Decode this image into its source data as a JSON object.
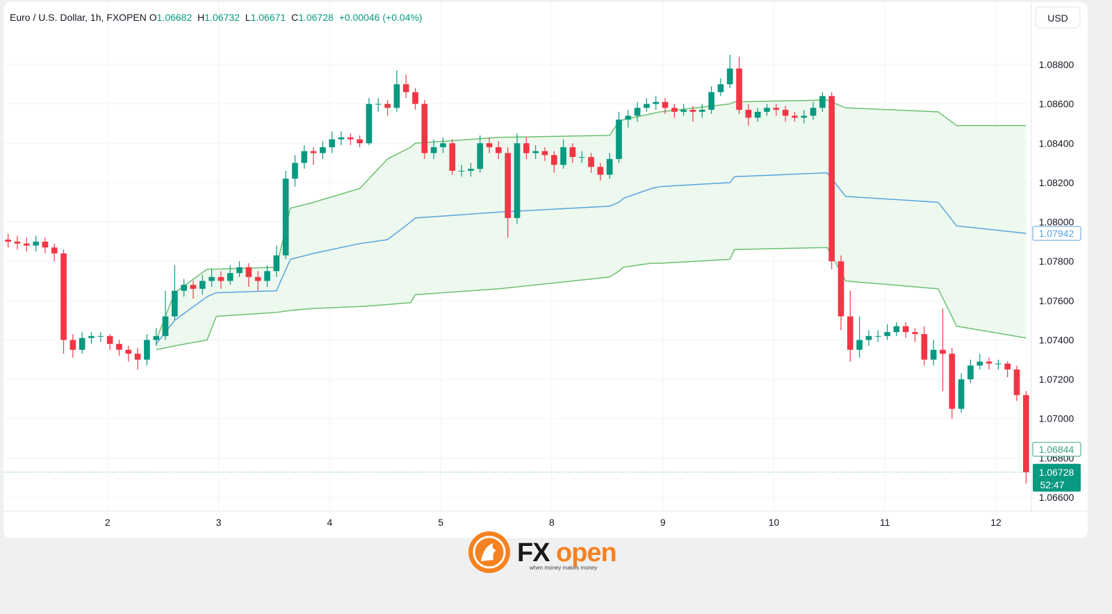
{
  "chart_data": {
    "type": "candlestick",
    "title": "Euro / U.S. Dollar, 1h, FXOPEN",
    "ohlc_header": [
      {
        "key": "O",
        "value": 1.06682
      },
      {
        "key": "H",
        "value": 1.06732
      },
      {
        "key": "L",
        "value": 1.06671
      },
      {
        "key": "C",
        "value": 1.06728
      }
    ],
    "change": "+0.00046 (+0.04%)",
    "currency": "USD",
    "up_color": "#089981",
    "down_color": "#f23645",
    "xlim": [
      0,
      222
    ],
    "xticks": [
      {
        "value": 22.5,
        "label": "2"
      },
      {
        "value": 46.5,
        "label": "3"
      },
      {
        "value": 70.5,
        "label": "4"
      },
      {
        "value": 94.5,
        "label": "5"
      },
      {
        "value": 118.5,
        "label": "8"
      },
      {
        "value": 142.5,
        "label": "9"
      },
      {
        "value": 166.5,
        "label": "10"
      },
      {
        "value": 190.5,
        "label": "11"
      },
      {
        "value": 214.5,
        "label": "12"
      }
    ],
    "ylim": [
      1.06533,
      1.09093
    ],
    "yticks": [
      {
        "value": 1.066,
        "label": "1.06600"
      },
      {
        "value": 1.068,
        "label": "1.06800"
      },
      {
        "value": 1.07,
        "label": "1.07000"
      },
      {
        "value": 1.072,
        "label": "1.07200"
      },
      {
        "value": 1.074,
        "label": "1.07400"
      },
      {
        "value": 1.076,
        "label": "1.07600"
      },
      {
        "value": 1.078,
        "label": "1.07800"
      },
      {
        "value": 1.08,
        "label": "1.08000"
      },
      {
        "value": 1.082,
        "label": "1.08200"
      },
      {
        "value": 1.084,
        "label": "1.08400"
      },
      {
        "value": 1.086,
        "label": "1.08600"
      },
      {
        "value": 1.088,
        "label": "1.08800"
      }
    ],
    "grid": true,
    "x": [
      1,
      3,
      5,
      7,
      9,
      11,
      13,
      15,
      17,
      19,
      21,
      23,
      25,
      27,
      29,
      31,
      33,
      35,
      37,
      39,
      41,
      43,
      45,
      47,
      49,
      51,
      53,
      55,
      57,
      59,
      61,
      63,
      65,
      67,
      69,
      71,
      73,
      75,
      77,
      79,
      81,
      83,
      85,
      87,
      89,
      91,
      93,
      95,
      97,
      99,
      101,
      103,
      105,
      107,
      109,
      111,
      113,
      115,
      117,
      119,
      121,
      123,
      125,
      127,
      129,
      131,
      133,
      135,
      137,
      139,
      141,
      143,
      145,
      147,
      149,
      151,
      153,
      155,
      157,
      159,
      161,
      163,
      165,
      167,
      169,
      171,
      173,
      175,
      177,
      179,
      181,
      183,
      185,
      187,
      189,
      191,
      193,
      195,
      197,
      199,
      201,
      203,
      205,
      207,
      209,
      211,
      213,
      215,
      217,
      219,
      221
    ],
    "open": [
      1.0791,
      1.079,
      1.0789,
      1.0788,
      1.079,
      1.0787,
      1.0784,
      1.074,
      1.0735,
      1.0741,
      1.0742,
      1.0742,
      1.0738,
      1.0735,
      1.0733,
      1.073,
      1.074,
      1.0742,
      1.0752,
      1.0765,
      1.0768,
      1.0766,
      1.077,
      1.0772,
      1.077,
      1.0774,
      1.0777,
      1.0772,
      1.077,
      1.0775,
      1.0783,
      1.0822,
      1.083,
      1.0836,
      1.0835,
      1.0838,
      1.0842,
      1.0843,
      1.0842,
      1.084,
      1.086,
      1.086,
      1.0858,
      1.087,
      1.0866,
      1.086,
      1.0835,
      1.0838,
      1.084,
      1.0826,
      1.0826,
      1.0827,
      1.084,
      1.0838,
      1.0835,
      1.0802,
      1.084,
      1.0835,
      1.0836,
      1.0834,
      1.0829,
      1.0838,
      1.0833,
      1.0833,
      1.0828,
      1.0824,
      1.0832,
      1.0852,
      1.0854,
      1.0858,
      1.086,
      1.0861,
      1.0858,
      1.0856,
      1.0857,
      1.0856,
      1.0857,
      1.0866,
      1.087,
      1.0878,
      1.0857,
      1.0853,
      1.0856,
      1.0858,
      1.0857,
      1.0854,
      1.0853,
      1.0854,
      1.0858,
      1.0864,
      1.078,
      1.0752,
      1.0735,
      1.074,
      1.0742,
      1.0742,
      1.0744,
      1.0747,
      1.0744,
      1.0743,
      1.073,
      1.0735,
      1.0733,
      1.0705,
      1.072,
      1.0727,
      1.0729,
      1.0728,
      1.0728,
      1.0725,
      1.0712
    ],
    "high": [
      1.0794,
      1.0793,
      1.0792,
      1.0793,
      1.0792,
      1.0789,
      1.0786,
      1.0743,
      1.0744,
      1.0744,
      1.0744,
      1.0743,
      1.074,
      1.0737,
      1.0736,
      1.0743,
      1.0746,
      1.0765,
      1.0778,
      1.0771,
      1.077,
      1.0773,
      1.0776,
      1.0775,
      1.0778,
      1.078,
      1.0779,
      1.0775,
      1.0778,
      1.0788,
      1.0826,
      1.0834,
      1.0839,
      1.0838,
      1.0841,
      1.0846,
      1.0846,
      1.0845,
      1.0844,
      1.0863,
      1.0863,
      1.0862,
      1.0877,
      1.0875,
      1.0868,
      1.0862,
      1.0842,
      1.0843,
      1.0842,
      1.0829,
      1.083,
      1.0844,
      1.0843,
      1.0841,
      1.0838,
      1.0845,
      1.0843,
      1.0839,
      1.0838,
      1.0836,
      1.0842,
      1.084,
      1.0836,
      1.0835,
      1.083,
      1.0835,
      1.0856,
      1.0857,
      1.0861,
      1.0863,
      1.0864,
      1.0863,
      1.086,
      1.086,
      1.0859,
      1.086,
      1.0869,
      1.0873,
      1.0885,
      1.0884,
      1.086,
      1.0858,
      1.086,
      1.086,
      1.0859,
      1.0856,
      1.0857,
      1.0861,
      1.0866,
      1.0866,
      1.0783,
      1.0765,
      1.0752,
      1.0745,
      1.0745,
      1.0748,
      1.0749,
      1.0749,
      1.0746,
      1.0747,
      1.074,
      1.0756,
      1.0736,
      1.0723,
      1.073,
      1.0733,
      1.0731,
      1.073,
      1.0729,
      1.0727,
      1.0714
    ],
    "low": [
      1.0787,
      1.0786,
      1.0785,
      1.0785,
      1.0784,
      1.078,
      1.0733,
      1.0731,
      1.0733,
      1.0738,
      1.0739,
      1.0735,
      1.0732,
      1.0729,
      1.0725,
      1.0727,
      1.0737,
      1.074,
      1.075,
      1.0762,
      1.0761,
      1.0763,
      1.0767,
      1.0766,
      1.0768,
      1.0772,
      1.0767,
      1.0765,
      1.0767,
      1.0772,
      1.0781,
      1.0818,
      1.0827,
      1.0829,
      1.0832,
      1.0835,
      1.0839,
      1.0839,
      1.0838,
      1.0839,
      1.0856,
      1.0854,
      1.0856,
      1.0863,
      1.0857,
      1.0832,
      1.0832,
      1.0835,
      1.0824,
      1.0823,
      1.0823,
      1.0825,
      1.0835,
      1.0832,
      1.0792,
      1.0799,
      1.0832,
      1.0832,
      1.0831,
      1.0825,
      1.0827,
      1.083,
      1.083,
      1.0825,
      1.0821,
      1.0822,
      1.083,
      1.0848,
      1.0851,
      1.0856,
      1.0857,
      1.0855,
      1.0853,
      1.0854,
      1.0851,
      1.0853,
      1.0855,
      1.0864,
      1.0868,
      1.0855,
      1.0849,
      1.0851,
      1.0854,
      1.0854,
      1.0851,
      1.0851,
      1.085,
      1.0852,
      1.0856,
      1.0776,
      1.0745,
      1.0729,
      1.0731,
      1.0737,
      1.0739,
      1.074,
      1.0742,
      1.0741,
      1.0739,
      1.0727,
      1.0727,
      1.0714,
      1.07,
      1.0703,
      1.0718,
      1.0725,
      1.0725,
      1.0725,
      1.0721,
      1.0709,
      1.0667
    ],
    "close": [
      1.079,
      1.0789,
      1.0788,
      1.079,
      1.0787,
      1.0784,
      1.074,
      1.0735,
      1.0741,
      1.0742,
      1.0742,
      1.0738,
      1.0735,
      1.0733,
      1.073,
      1.074,
      1.0742,
      1.0752,
      1.0765,
      1.0768,
      1.0766,
      1.077,
      1.0772,
      1.077,
      1.0774,
      1.0777,
      1.0772,
      1.077,
      1.0775,
      1.0783,
      1.0822,
      1.083,
      1.0836,
      1.0835,
      1.0838,
      1.0842,
      1.0843,
      1.0842,
      1.084,
      1.086,
      1.086,
      1.0858,
      1.087,
      1.0866,
      1.086,
      1.0835,
      1.0838,
      1.084,
      1.0826,
      1.0826,
      1.0827,
      1.084,
      1.0838,
      1.0835,
      1.0802,
      1.084,
      1.0835,
      1.0836,
      1.0834,
      1.0829,
      1.0838,
      1.0833,
      1.0833,
      1.0828,
      1.0824,
      1.0832,
      1.0852,
      1.0854,
      1.0858,
      1.086,
      1.0861,
      1.0858,
      1.0856,
      1.0857,
      1.0856,
      1.0857,
      1.0866,
      1.087,
      1.0878,
      1.0857,
      1.0853,
      1.0856,
      1.0858,
      1.0857,
      1.0854,
      1.0853,
      1.0854,
      1.0858,
      1.0864,
      1.078,
      1.0752,
      1.0735,
      1.074,
      1.0742,
      1.0742,
      1.0744,
      1.0747,
      1.0744,
      1.0743,
      1.073,
      1.0735,
      1.0733,
      1.0705,
      1.072,
      1.0727,
      1.0729,
      1.0728,
      1.0728,
      1.0725,
      1.0712,
      1.06728
    ],
    "lines": {
      "x": [
        33,
        37,
        44,
        46,
        59,
        62,
        67,
        77,
        83,
        88,
        89,
        107,
        131,
        133,
        134,
        140,
        142,
        157,
        158,
        178,
        182,
        202,
        206,
        221
      ],
      "band_fill": "#e9f6ea",
      "series": [
        {
          "color": "#6cc070",
          "values": [
            1.074,
            1.0764,
            1.0776,
            1.0776,
            1.0777,
            1.0807,
            1.081,
            1.0817,
            1.0832,
            1.0838,
            1.084,
            1.0843,
            1.0844,
            1.0851,
            1.0852,
            1.0855,
            1.0856,
            1.086,
            1.0861,
            1.0862,
            1.0858,
            1.0856,
            1.0849,
            1.0849
          ]
        },
        {
          "color": "#5aa2e0",
          "values": [
            1.0738,
            1.075,
            1.0762,
            1.0764,
            1.0765,
            1.0781,
            1.0784,
            1.0789,
            1.0791,
            1.08,
            1.0802,
            1.0805,
            1.0808,
            1.081,
            1.0812,
            1.0817,
            1.0818,
            1.082,
            1.0823,
            1.0825,
            1.0813,
            1.081,
            1.0798,
            1.07942
          ]
        },
        {
          "color": "#6cc070",
          "values": [
            1.0735,
            1.0737,
            1.074,
            1.0752,
            1.0754,
            1.0755,
            1.0756,
            1.0757,
            1.0758,
            1.0759,
            1.0763,
            1.0766,
            1.0772,
            1.0775,
            1.0777,
            1.0779,
            1.0779,
            1.0781,
            1.0786,
            1.0787,
            1.077,
            1.0766,
            1.0747,
            1.0741
          ]
        }
      ]
    },
    "price_labels": [
      {
        "value": 1.07942,
        "color": "#5aa2e0"
      },
      {
        "value": 1.06844,
        "color": "#3aa37a"
      }
    ],
    "current_price": {
      "value": 1.06728,
      "countdown": "52:47",
      "color": "#089981"
    }
  },
  "logo": {
    "brand_left": "FX",
    "brand_right": "open",
    "tagline": "when money makes money"
  }
}
